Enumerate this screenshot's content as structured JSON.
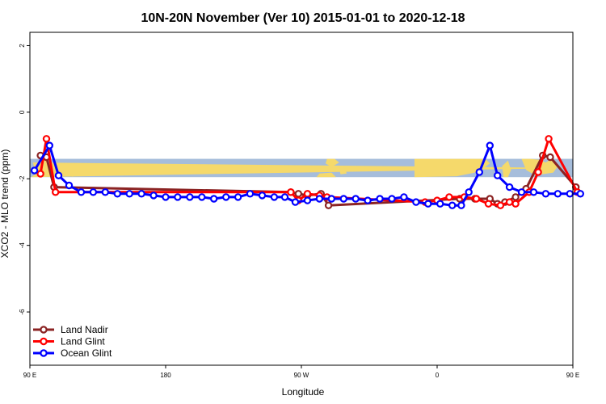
{
  "chart_data": {
    "type": "line",
    "title": "10N-20N November (Ver 10)   2015-01-01 to 2020-12-18",
    "xlabel": "Longitude",
    "ylabel": "XCO2 - MLO trend (ppm)",
    "xlim": [
      90,
      450
    ],
    "ylim": [
      -7.6,
      2.4
    ],
    "x_ticks": [
      {
        "value": 90,
        "label": "90 E"
      },
      {
        "value": 180,
        "label": "180"
      },
      {
        "value": 270,
        "label": "90 W"
      },
      {
        "value": 360,
        "label": "0"
      },
      {
        "value": 450,
        "label": "90 E"
      },
      {
        "value": 540,
        "label": "180"
      }
    ],
    "y_ticks": [
      {
        "value": 2,
        "label": "2"
      },
      {
        "value": 0,
        "label": "0"
      },
      {
        "value": -2,
        "label": "-2"
      },
      {
        "value": -4,
        "label": "-4"
      },
      {
        "value": -6,
        "label": "-6"
      }
    ],
    "series": [
      {
        "name": "Land Nadir",
        "color": "#8b2323",
        "points": [
          [
            97,
            -1.3
          ],
          [
            101,
            -1.35
          ],
          [
            106,
            -2.25
          ],
          [
            263,
            -2.4
          ],
          [
            268,
            -2.45
          ],
          [
            274,
            -2.5
          ],
          [
            283,
            -2.45
          ],
          [
            288,
            -2.8
          ],
          [
            375,
            -2.6
          ],
          [
            385,
            -2.6
          ],
          [
            395,
            -2.6
          ],
          [
            400,
            -2.75
          ],
          [
            405,
            -2.7
          ],
          [
            412,
            -2.55
          ],
          [
            419,
            -2.3
          ],
          [
            430,
            -1.3
          ],
          [
            435,
            -1.35
          ],
          [
            452,
            -2.25
          ]
        ]
      },
      {
        "name": "Land Glint",
        "color": "#ff0000",
        "points": [
          [
            97,
            -1.85
          ],
          [
            101,
            -0.8
          ],
          [
            107,
            -2.4
          ],
          [
            263,
            -2.4
          ],
          [
            268,
            -2.65
          ],
          [
            274,
            -2.45
          ],
          [
            282,
            -2.5
          ],
          [
            287,
            -2.55
          ],
          [
            352,
            -2.7
          ],
          [
            360,
            -2.65
          ],
          [
            368,
            -2.55
          ],
          [
            378,
            -2.55
          ],
          [
            386,
            -2.6
          ],
          [
            394,
            -2.75
          ],
          [
            402,
            -2.8
          ],
          [
            408,
            -2.7
          ],
          [
            412,
            -2.75
          ],
          [
            421,
            -2.4
          ],
          [
            427,
            -1.8
          ],
          [
            434,
            -0.8
          ],
          [
            453,
            -2.4
          ]
        ]
      },
      {
        "name": "Ocean Glint",
        "color": "#0000ff",
        "points": [
          [
            93,
            -1.75
          ],
          [
            103,
            -1.0
          ],
          [
            109,
            -1.9
          ],
          [
            116,
            -2.2
          ],
          [
            124,
            -2.4
          ],
          [
            132,
            -2.4
          ],
          [
            140,
            -2.4
          ],
          [
            148,
            -2.45
          ],
          [
            156,
            -2.45
          ],
          [
            164,
            -2.45
          ],
          [
            172,
            -2.5
          ],
          [
            180,
            -2.55
          ],
          [
            188,
            -2.55
          ],
          [
            196,
            -2.55
          ],
          [
            204,
            -2.55
          ],
          [
            212,
            -2.6
          ],
          [
            220,
            -2.55
          ],
          [
            228,
            -2.55
          ],
          [
            236,
            -2.45
          ],
          [
            244,
            -2.5
          ],
          [
            252,
            -2.55
          ],
          [
            259,
            -2.55
          ],
          [
            266,
            -2.7
          ],
          [
            274,
            -2.65
          ],
          [
            282,
            -2.6
          ],
          [
            290,
            -2.6
          ],
          [
            298,
            -2.6
          ],
          [
            306,
            -2.6
          ],
          [
            314,
            -2.65
          ],
          [
            322,
            -2.6
          ],
          [
            330,
            -2.6
          ],
          [
            338,
            -2.55
          ],
          [
            346,
            -2.7
          ],
          [
            354,
            -2.75
          ],
          [
            362,
            -2.75
          ],
          [
            370,
            -2.8
          ],
          [
            376,
            -2.8
          ],
          [
            381,
            -2.4
          ],
          [
            388,
            -1.8
          ],
          [
            395,
            -1.0
          ],
          [
            400,
            -1.9
          ],
          [
            408,
            -2.25
          ],
          [
            416,
            -2.4
          ],
          [
            424,
            -2.4
          ],
          [
            432,
            -2.45
          ],
          [
            440,
            -2.45
          ],
          [
            448,
            -2.45
          ],
          [
            455,
            -2.45
          ]
        ]
      }
    ],
    "background_band": {
      "y0": -1.4,
      "y1": -1.95,
      "ocean_color": "#a6bddb",
      "land_color": "#f5d96b"
    },
    "legend_position": "bottom-left",
    "grid": false
  }
}
